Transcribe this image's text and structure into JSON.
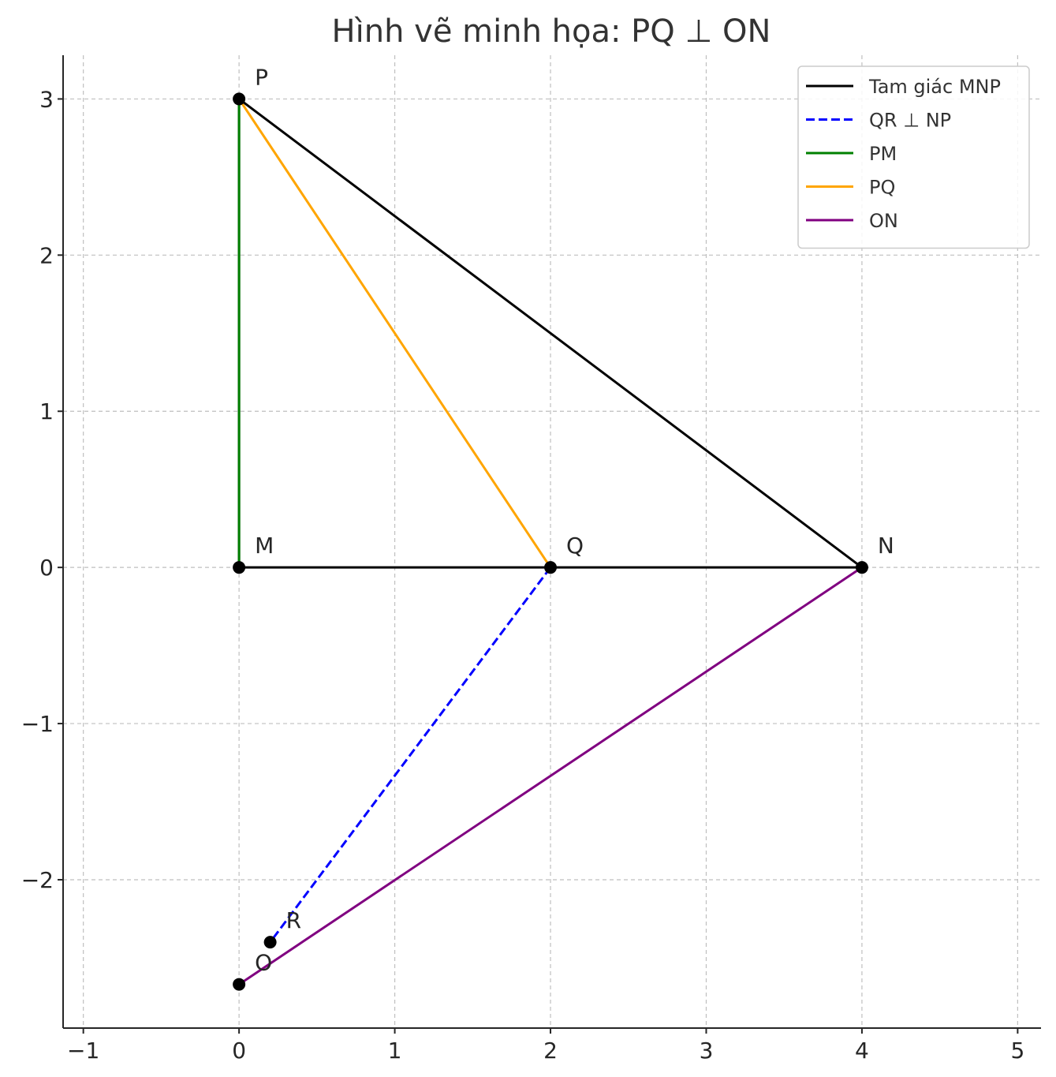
{
  "chart_data": {
    "type": "line",
    "title": "Hình vẽ minh họa: PQ ⊥ ON",
    "xlabel": "",
    "ylabel": "",
    "xlim": [
      -1.13,
      5.15
    ],
    "ylim": [
      -2.95,
      3.28
    ],
    "xticks": [
      {
        "value": -1,
        "label": "−1"
      },
      {
        "value": 0,
        "label": "0"
      },
      {
        "value": 1,
        "label": "1"
      },
      {
        "value": 2,
        "label": "2"
      },
      {
        "value": 3,
        "label": "3"
      },
      {
        "value": 4,
        "label": "4"
      },
      {
        "value": 5,
        "label": "5"
      }
    ],
    "yticks": [
      {
        "value": -2,
        "label": "−2"
      },
      {
        "value": -1,
        "label": "−1"
      },
      {
        "value": 0,
        "label": "0"
      },
      {
        "value": 1,
        "label": "1"
      },
      {
        "value": 2,
        "label": "2"
      },
      {
        "value": 3,
        "label": "3"
      }
    ],
    "grid": true,
    "legend_position": "top-right",
    "series": [
      {
        "name": "Tam giác MNP",
        "color": "#000000",
        "dashed": false,
        "x": [
          0,
          4,
          0,
          0
        ],
        "y": [
          0,
          0,
          3,
          0
        ]
      },
      {
        "name": "QR ⊥ NP",
        "color": "#0000ff",
        "dashed": true,
        "x": [
          2,
          0.2
        ],
        "y": [
          0,
          -2.4
        ]
      },
      {
        "name": "PM",
        "color": "#008000",
        "dashed": false,
        "x": [
          0,
          0
        ],
        "y": [
          3,
          0
        ]
      },
      {
        "name": "PQ",
        "color": "#ffa500",
        "dashed": false,
        "x": [
          0,
          2
        ],
        "y": [
          3,
          0
        ]
      },
      {
        "name": "ON",
        "color": "#800080",
        "dashed": false,
        "x": [
          0,
          4
        ],
        "y": [
          -2.67,
          0
        ]
      }
    ],
    "points": [
      {
        "label": "M",
        "x": 0,
        "y": 0
      },
      {
        "label": "N",
        "x": 4,
        "y": 0
      },
      {
        "label": "P",
        "x": 0,
        "y": 3
      },
      {
        "label": "Q",
        "x": 2,
        "y": 0
      },
      {
        "label": "R",
        "x": 0.2,
        "y": -2.4
      },
      {
        "label": "O",
        "x": 0,
        "y": -2.67
      }
    ]
  }
}
